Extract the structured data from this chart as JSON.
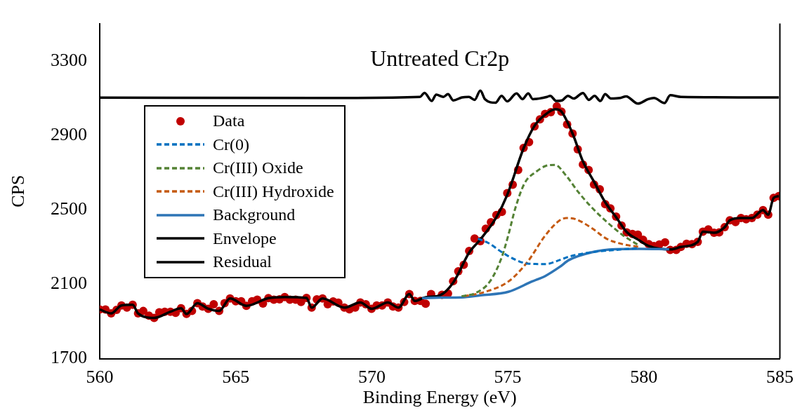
{
  "chart_data": {
    "type": "line",
    "title": "Untreated Cr2p",
    "xlabel": "Binding Energy (eV)",
    "ylabel": "CPS",
    "xlim": [
      560,
      585
    ],
    "xticks": [
      560,
      565,
      570,
      575,
      580,
      585
    ],
    "ylim": [
      1700,
      3500
    ],
    "yticks": [
      1700,
      2100,
      2500,
      2900,
      3300
    ],
    "grid": false,
    "legend": "left",
    "series": [
      {
        "name": "Data",
        "type": "scatter",
        "marker": "circle",
        "color": "#c00000",
        "x": [
          560.0,
          560.21,
          560.42,
          560.62,
          560.8,
          561.0,
          561.21,
          561.41,
          561.6,
          561.81,
          562.0,
          562.19,
          562.39,
          562.6,
          562.79,
          562.99,
          563.19,
          563.39,
          563.59,
          563.78,
          563.99,
          564.19,
          564.39,
          564.59,
          564.79,
          565.0,
          565.2,
          565.39,
          565.6,
          565.79,
          566.0,
          566.2,
          566.4,
          566.61,
          566.8,
          566.99,
          567.2,
          567.4,
          567.6,
          567.79,
          567.98,
          568.19,
          568.38,
          568.58,
          568.77,
          568.99,
          569.18,
          569.39,
          569.58,
          569.78,
          569.99,
          570.18,
          570.38,
          570.59,
          570.78,
          570.98,
          571.19,
          571.38,
          571.58,
          571.79,
          571.98,
          572.18,
          572.58,
          572.8,
          572.99,
          573.18,
          573.38,
          573.58,
          573.78,
          573.99,
          574.19,
          574.38,
          574.58,
          574.78,
          574.98,
          575.18,
          575.38,
          575.58,
          575.78,
          575.98,
          576.18,
          576.37,
          576.58,
          576.8,
          576.97,
          577.18,
          577.38,
          577.57,
          577.76,
          577.97,
          578.17,
          578.38,
          578.58,
          578.77,
          578.98,
          579.18,
          579.37,
          579.58,
          579.78,
          579.97,
          580.18,
          580.37,
          580.57,
          580.78,
          580.97,
          581.19,
          581.36,
          581.57,
          581.77,
          581.98,
          582.17,
          582.37,
          582.58,
          582.77,
          582.97,
          583.16,
          583.37,
          583.57,
          583.76,
          583.97,
          584.17,
          584.38,
          584.57,
          584.77,
          584.96
        ],
        "values": [
          1964,
          1964,
          1943,
          1962,
          1986,
          1974,
          1989,
          1943,
          1956,
          1931,
          1919,
          1949,
          1952,
          1952,
          1946,
          1971,
          1940,
          1956,
          1998,
          1980,
          1968,
          1992,
          1956,
          1998,
          2023,
          2008,
          2008,
          1984,
          2008,
          2017,
          1996,
          2025,
          2017,
          2019,
          2031,
          2017,
          2017,
          2004,
          2026,
          1974,
          2019,
          2023,
          1992,
          2007,
          2001,
          1974,
          1965,
          1974,
          2002,
          1992,
          1968,
          1986,
          1986,
          2002,
          1980,
          1974,
          2004,
          2047,
          2010,
          2010,
          1995,
          2047,
          2043,
          2050,
          2116,
          2169,
          2204,
          2278,
          2345,
          2331,
          2398,
          2433,
          2471,
          2488,
          2589,
          2634,
          2713,
          2832,
          2863,
          2948,
          2985,
          3015,
          3024,
          3055,
          3027,
          2958,
          2909,
          2824,
          2743,
          2713,
          2635,
          2610,
          2530,
          2507,
          2463,
          2415,
          2378,
          2370,
          2366,
          2339,
          2315,
          2305,
          2313,
          2325,
          2284,
          2284,
          2300,
          2317,
          2315,
          2327,
          2382,
          2394,
          2376,
          2378,
          2406,
          2443,
          2434,
          2455,
          2449,
          2455,
          2473,
          2498,
          2473,
          2564,
          2573
        ]
      },
      {
        "name": "Cr(0)",
        "type": "line",
        "line_style": "dashed",
        "color": "#0070c0",
        "x": [
          573.9,
          574.3,
          574.8,
          575.3,
          575.71,
          576.39,
          576.91,
          577.25,
          578.1,
          578.96,
          579.82
        ],
        "values": [
          2345,
          2320,
          2270,
          2230,
          2211,
          2208,
          2230,
          2248,
          2272,
          2284,
          2294
        ]
      },
      {
        "name": "Cr(III) Oxide",
        "type": "line",
        "line_style": "dashed",
        "color": "#548235",
        "x": [
          573.3,
          573.82,
          574.34,
          574.77,
          575.02,
          575.28,
          575.62,
          576.05,
          576.39,
          576.73,
          577.16,
          577.59,
          578.1,
          578.62,
          579.22,
          579.82
        ],
        "values": [
          2035,
          2053,
          2114,
          2242,
          2364,
          2510,
          2643,
          2705,
          2735,
          2741,
          2680,
          2595,
          2510,
          2437,
          2364,
          2308
        ]
      },
      {
        "name": "Cr(III) Hydroxide",
        "type": "line",
        "line_style": "dashed",
        "color": "#c55a11",
        "x": [
          573.39,
          574.17,
          575.02,
          575.71,
          576.39,
          576.91,
          577.16,
          577.5,
          578.1,
          578.62,
          579.22,
          579.82
        ],
        "values": [
          2035,
          2059,
          2114,
          2217,
          2364,
          2443,
          2455,
          2449,
          2400,
          2345,
          2315,
          2300
        ]
      },
      {
        "name": "Background",
        "type": "line",
        "line_style": "solid",
        "color": "#2e75b6",
        "x": [
          571.85,
          572.5,
          573.31,
          574.0,
          575.02,
          575.88,
          576.39,
          576.91,
          577.25,
          578.1,
          578.96,
          579.82,
          580.93
        ],
        "values": [
          2025,
          2028,
          2029,
          2040,
          2059,
          2114,
          2145,
          2193,
          2230,
          2272,
          2288,
          2290,
          2288
        ]
      },
      {
        "name": "Envelope",
        "type": "line",
        "line_style": "solid",
        "color": "#000000",
        "x": [
          560.0,
          560.42,
          560.8,
          561.21,
          561.41,
          562.0,
          562.6,
          562.99,
          563.19,
          563.59,
          563.99,
          564.39,
          564.79,
          565.39,
          566.2,
          566.8,
          567.6,
          567.79,
          568.19,
          568.99,
          569.58,
          569.99,
          570.59,
          570.98,
          571.38,
          571.58,
          571.98,
          572.5,
          573.0,
          573.58,
          573.99,
          574.58,
          574.98,
          575.58,
          575.98,
          576.37,
          576.75,
          576.97,
          577.38,
          577.76,
          578.17,
          578.58,
          578.98,
          579.37,
          579.78,
          580.18,
          580.6,
          581.0,
          581.36,
          581.98,
          582.17,
          582.58,
          582.97,
          583.16,
          583.57,
          583.97,
          584.38,
          584.57,
          584.77,
          584.96
        ],
        "values": [
          1964,
          1943,
          1986,
          1989,
          1943,
          1919,
          1952,
          1971,
          1940,
          1998,
          1968,
          1956,
          2023,
          1984,
          2025,
          2031,
          2026,
          1974,
          2023,
          1974,
          2002,
          1968,
          2002,
          1974,
          2047,
          2010,
          2030,
          2040,
          2110,
          2270,
          2340,
          2460,
          2580,
          2830,
          2950,
          3010,
          3040,
          3027,
          2909,
          2760,
          2650,
          2540,
          2460,
          2380,
          2340,
          2305,
          2290,
          2287,
          2300,
          2327,
          2382,
          2376,
          2406,
          2443,
          2455,
          2455,
          2498,
          2473,
          2564,
          2573
        ]
      },
      {
        "name": "Residual",
        "type": "line",
        "line_style": "solid",
        "color": "#000000",
        "x": [
          560,
          568.17,
          571.77,
          571.94,
          572.2,
          572.37,
          572.63,
          572.8,
          573.0,
          573.31,
          573.57,
          573.78,
          573.99,
          574.16,
          574.55,
          574.77,
          574.98,
          575.32,
          575.54,
          575.75,
          575.92,
          576.14,
          576.44,
          576.56,
          576.78,
          576.99,
          577.21,
          577.42,
          577.76,
          577.98,
          578.19,
          578.4,
          578.58,
          578.79,
          579.13,
          579.35,
          579.78,
          580.16,
          580.37,
          580.76,
          580.97,
          581.36,
          584.96
        ],
        "values": [
          3102,
          3100,
          3106,
          3128,
          3084,
          3118,
          3106,
          3121,
          3087,
          3103,
          3106,
          3090,
          3140,
          3094,
          3075,
          3112,
          3082,
          3125,
          3094,
          3125,
          3094,
          3097,
          3106,
          3112,
          3084,
          3087,
          3112,
          3097,
          3127,
          3090,
          3112,
          3084,
          3121,
          3097,
          3100,
          3109,
          3070,
          3094,
          3100,
          3073,
          3115,
          3106,
          3103
        ]
      }
    ]
  }
}
